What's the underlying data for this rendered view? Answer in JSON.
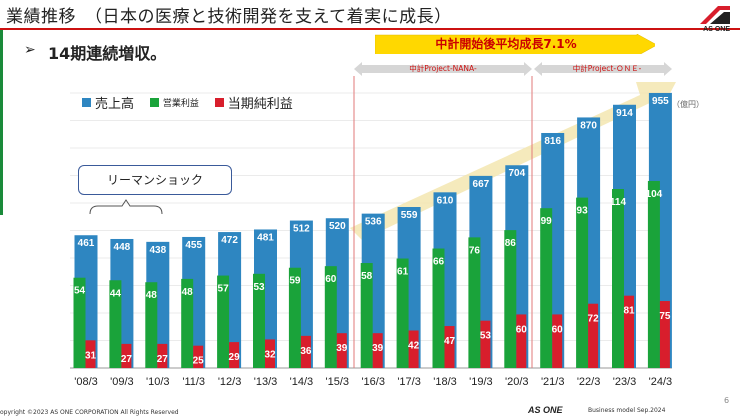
{
  "header": {
    "title": "業績推移　（日本の医療と技術開発を支えて着実に成長）",
    "subtitle": "14期連続増収。",
    "subtitle_bullet": "➢",
    "logo_text": "AS ONE"
  },
  "annotations": {
    "growth_banner": "中計開始後平均成長7.1%",
    "plan1": "中計Project-NANA-",
    "plan2": "中計Project-ＯＮＥ-",
    "lehman": "リーマンショック",
    "unit": "（億円）"
  },
  "colors": {
    "sales": "#2e86c1",
    "operating": "#1aa33a",
    "net": "#d81e2c",
    "accent": "#cc0000",
    "banner": "#ffd800"
  },
  "chart_data": {
    "type": "bar",
    "title": "業績推移",
    "categories": [
      "'08/3",
      "'09/3",
      "'10/3",
      "'11/3",
      "'12/3",
      "'13/3",
      "'14/3",
      "'15/3",
      "'16/3",
      "'17/3",
      "'18/3",
      "'19/3",
      "'20/3",
      "'21/3",
      "'22/3",
      "'23/3",
      "'24/3"
    ],
    "series": [
      {
        "name": "売上高",
        "values": [
          461,
          448,
          438,
          455,
          472,
          481,
          512,
          520,
          536,
          559,
          610,
          667,
          704,
          816,
          870,
          914,
          955
        ]
      },
      {
        "name": "営業利益",
        "values": [
          54,
          44,
          48,
          48,
          57,
          53,
          59,
          60,
          58,
          61,
          66,
          76,
          86,
          99,
          93,
          114,
          104
        ]
      },
      {
        "name": "当期純利益",
        "values": [
          31,
          27,
          27,
          25,
          29,
          32,
          36,
          39,
          39,
          42,
          47,
          53,
          60,
          60,
          72,
          81,
          75
        ]
      }
    ],
    "legend": "top-left",
    "unit": "億円"
  },
  "footer": {
    "copyright": "opyright ©2023 AS ONE CORPORATION All Rights Reserved",
    "logo": "AS ONE",
    "model": "Business model Sep.2024",
    "page": "6"
  }
}
